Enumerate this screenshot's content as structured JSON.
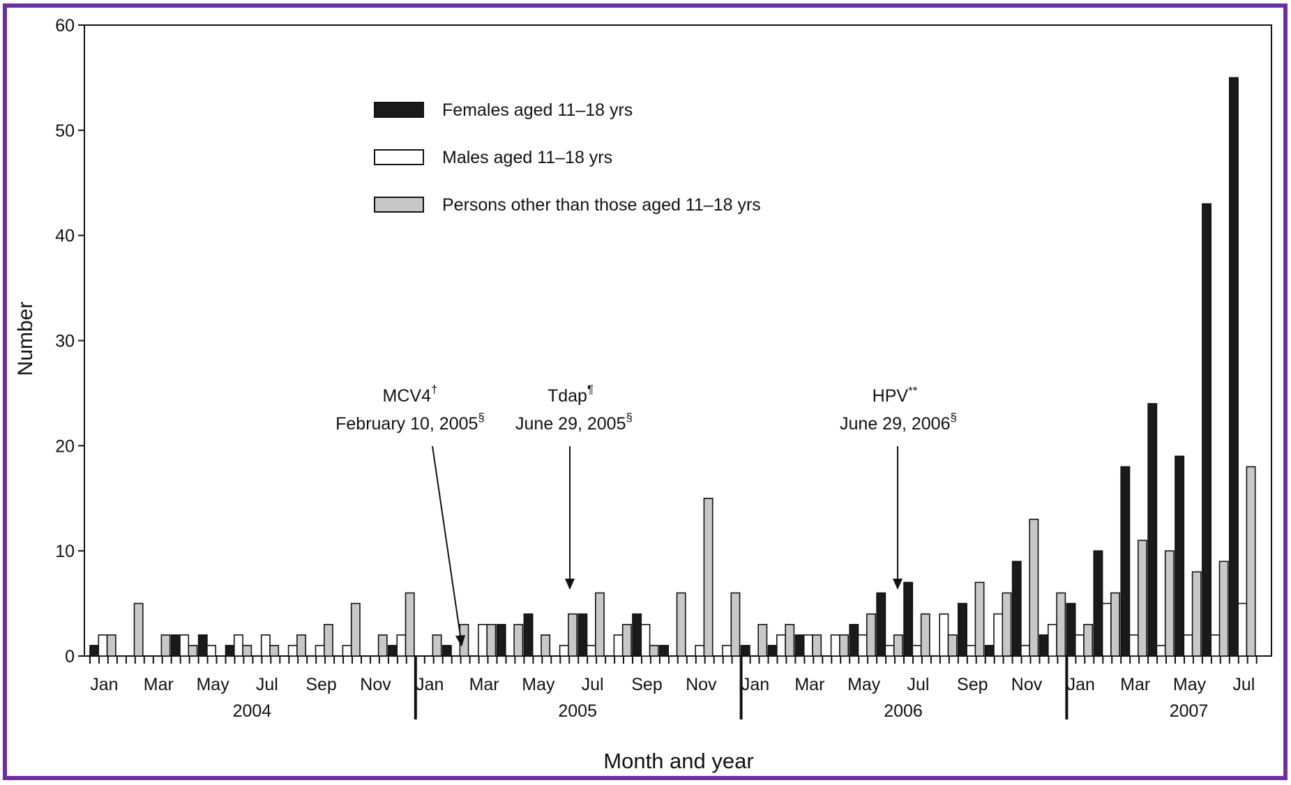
{
  "chart_data": {
    "type": "bar",
    "xlabel": "Month and year",
    "ylabel": "Number",
    "ylim": [
      0,
      60
    ],
    "yticks": [
      0,
      10,
      20,
      30,
      40,
      50,
      60
    ],
    "grid": false,
    "legend_position": "top-left",
    "years": [
      "2004",
      "2005",
      "2006",
      "2007"
    ],
    "month_tick_labels": [
      [
        "Jan",
        "Mar",
        "May",
        "Jul",
        "Sep",
        "Nov"
      ],
      [
        "Jan",
        "Mar",
        "May",
        "Jul",
        "Sep",
        "Nov"
      ],
      [
        "Jan",
        "Mar",
        "May",
        "Jul",
        "Sep",
        "Nov"
      ],
      [
        "Jan",
        "Mar",
        "May",
        "Jul"
      ]
    ],
    "categories": [
      "Jan 2004",
      "Feb 2004",
      "Mar 2004",
      "Apr 2004",
      "May 2004",
      "Jun 2004",
      "Jul 2004",
      "Aug 2004",
      "Sep 2004",
      "Oct 2004",
      "Nov 2004",
      "Dec 2004",
      "Jan 2005",
      "Feb 2005",
      "Mar 2005",
      "Apr 2005",
      "May 2005",
      "Jun 2005",
      "Jul 2005",
      "Aug 2005",
      "Sep 2005",
      "Oct 2005",
      "Nov 2005",
      "Dec 2005",
      "Jan 2006",
      "Feb 2006",
      "Mar 2006",
      "Apr 2006",
      "May 2006",
      "Jun 2006",
      "Jul 2006",
      "Aug 2006",
      "Sep 2006",
      "Oct 2006",
      "Nov 2006",
      "Dec 2006",
      "Jan 2007",
      "Feb 2007",
      "Mar 2007",
      "Apr 2007",
      "May 2007",
      "Jun 2007",
      "Jul 2007"
    ],
    "series": [
      {
        "name": "Females aged 11–18 yrs",
        "color": "#1a1a1a",
        "values": [
          1,
          0,
          0,
          2,
          2,
          1,
          0,
          0,
          0,
          0,
          0,
          1,
          0,
          1,
          0,
          3,
          4,
          0,
          4,
          0,
          4,
          1,
          0,
          0,
          1,
          1,
          2,
          0,
          3,
          6,
          7,
          0,
          5,
          1,
          9,
          2,
          5,
          10,
          18,
          24,
          19,
          43,
          55
        ]
      },
      {
        "name": "Males aged 11–18 yrs",
        "color": "#ffffff",
        "values": [
          2,
          0,
          0,
          2,
          1,
          2,
          2,
          1,
          1,
          1,
          0,
          2,
          0,
          0,
          3,
          0,
          0,
          1,
          1,
          2,
          3,
          0,
          1,
          1,
          0,
          2,
          2,
          2,
          2,
          1,
          1,
          4,
          1,
          4,
          1,
          3,
          2,
          5,
          2,
          1,
          2,
          2,
          5
        ]
      },
      {
        "name": "Persons other than those aged 11–18 yrs",
        "color": "#c8c8c8",
        "values": [
          2,
          5,
          2,
          1,
          0,
          1,
          1,
          2,
          3,
          5,
          2,
          6,
          2,
          3,
          3,
          3,
          2,
          4,
          6,
          3,
          1,
          6,
          15,
          6,
          3,
          3,
          2,
          2,
          4,
          2,
          4,
          2,
          7,
          6,
          13,
          6,
          3,
          6,
          11,
          10,
          8,
          9,
          18
        ]
      }
    ],
    "annotations": [
      {
        "label": "MCV4",
        "superscript": "†",
        "date": "February 10, 2005",
        "date_superscript": "§",
        "month_index": 13
      },
      {
        "label": "Tdap",
        "superscript": "¶",
        "date": "June 29, 2005",
        "date_superscript": "§",
        "month_index": 17
      },
      {
        "label": "HPV",
        "superscript": "**",
        "date": "June 29, 2006",
        "date_superscript": "§",
        "month_index": 29
      }
    ]
  },
  "colors": {
    "frame_border": "#6b2fa0",
    "axis": "#111111",
    "bar_outline": "#111111"
  }
}
